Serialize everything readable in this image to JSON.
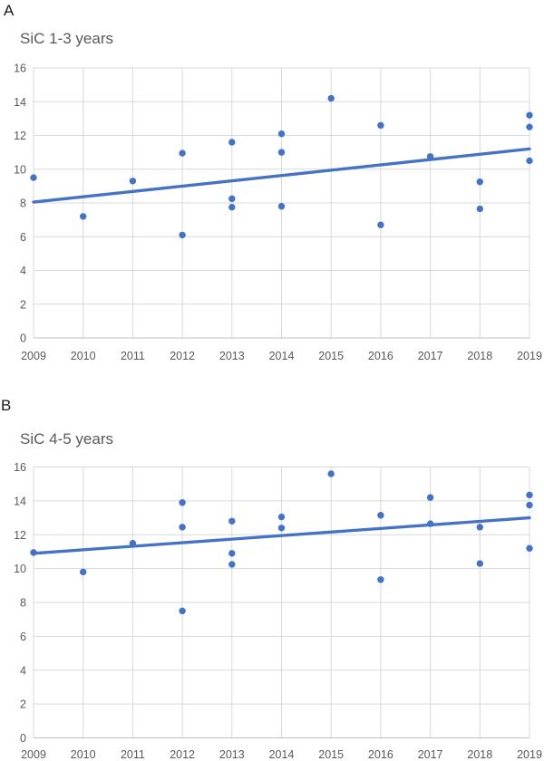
{
  "figure": {
    "background": "#ffffff",
    "description": "Two stacked scatter plots with linear trend lines"
  },
  "chart_data": [
    {
      "type": "scatter",
      "panel_label": "A",
      "title": "SiC 1-3 years",
      "xlabel": "",
      "ylabel": "",
      "xlim": [
        2009,
        2019
      ],
      "ylim": [
        0,
        16
      ],
      "y_tick_step": 2,
      "x_ticks": [
        2009,
        2010,
        2011,
        2012,
        2013,
        2014,
        2015,
        2016,
        2017,
        2018,
        2019
      ],
      "grid": true,
      "legend": "none",
      "points": [
        {
          "x": 2009,
          "y": 9.5
        },
        {
          "x": 2010,
          "y": 7.2
        },
        {
          "x": 2011,
          "y": 9.3
        },
        {
          "x": 2012,
          "y": 10.95
        },
        {
          "x": 2012,
          "y": 6.1
        },
        {
          "x": 2013,
          "y": 11.6
        },
        {
          "x": 2013,
          "y": 8.25
        },
        {
          "x": 2013,
          "y": 7.75
        },
        {
          "x": 2014,
          "y": 12.1
        },
        {
          "x": 2014,
          "y": 11.0
        },
        {
          "x": 2014,
          "y": 7.8
        },
        {
          "x": 2015,
          "y": 14.2
        },
        {
          "x": 2016,
          "y": 12.6
        },
        {
          "x": 2016,
          "y": 6.7
        },
        {
          "x": 2017,
          "y": 10.75
        },
        {
          "x": 2018,
          "y": 9.25
        },
        {
          "x": 2018,
          "y": 7.65
        },
        {
          "x": 2019,
          "y": 13.2
        },
        {
          "x": 2019,
          "y": 12.5
        },
        {
          "x": 2019,
          "y": 10.5
        }
      ],
      "trendline": {
        "x1": 2009,
        "y1": 8.05,
        "x2": 2019,
        "y2": 11.2
      },
      "colors": {
        "marker": "#4472C4",
        "trend": "#4472C4",
        "grid": "#D9D9D9",
        "axis": "#BFBFBF",
        "tick_label": "#595959",
        "title": "#595959"
      }
    },
    {
      "type": "scatter",
      "panel_label": "B",
      "title": "SiC 4-5 years",
      "xlabel": "",
      "ylabel": "",
      "xlim": [
        2009,
        2019
      ],
      "ylim": [
        0,
        16
      ],
      "y_tick_step": 2,
      "x_ticks": [
        2009,
        2010,
        2011,
        2012,
        2013,
        2014,
        2015,
        2016,
        2017,
        2018,
        2019
      ],
      "grid": true,
      "legend": "none",
      "points": [
        {
          "x": 2009,
          "y": 10.95
        },
        {
          "x": 2010,
          "y": 9.8
        },
        {
          "x": 2011,
          "y": 11.5
        },
        {
          "x": 2012,
          "y": 13.9
        },
        {
          "x": 2012,
          "y": 12.45
        },
        {
          "x": 2012,
          "y": 7.5
        },
        {
          "x": 2013,
          "y": 12.8
        },
        {
          "x": 2013,
          "y": 10.9
        },
        {
          "x": 2013,
          "y": 10.25
        },
        {
          "x": 2014,
          "y": 13.05
        },
        {
          "x": 2014,
          "y": 12.4
        },
        {
          "x": 2015,
          "y": 15.6
        },
        {
          "x": 2016,
          "y": 13.15
        },
        {
          "x": 2016,
          "y": 9.35
        },
        {
          "x": 2017,
          "y": 14.2
        },
        {
          "x": 2017,
          "y": 12.65
        },
        {
          "x": 2018,
          "y": 12.45
        },
        {
          "x": 2018,
          "y": 10.3
        },
        {
          "x": 2019,
          "y": 14.35
        },
        {
          "x": 2019,
          "y": 13.75
        },
        {
          "x": 2019,
          "y": 11.2
        }
      ],
      "trendline": {
        "x1": 2009,
        "y1": 10.9,
        "x2": 2019,
        "y2": 13.0
      },
      "colors": {
        "marker": "#4472C4",
        "trend": "#4472C4",
        "grid": "#D9D9D9",
        "axis": "#BFBFBF",
        "tick_label": "#595959",
        "title": "#595959"
      }
    }
  ]
}
